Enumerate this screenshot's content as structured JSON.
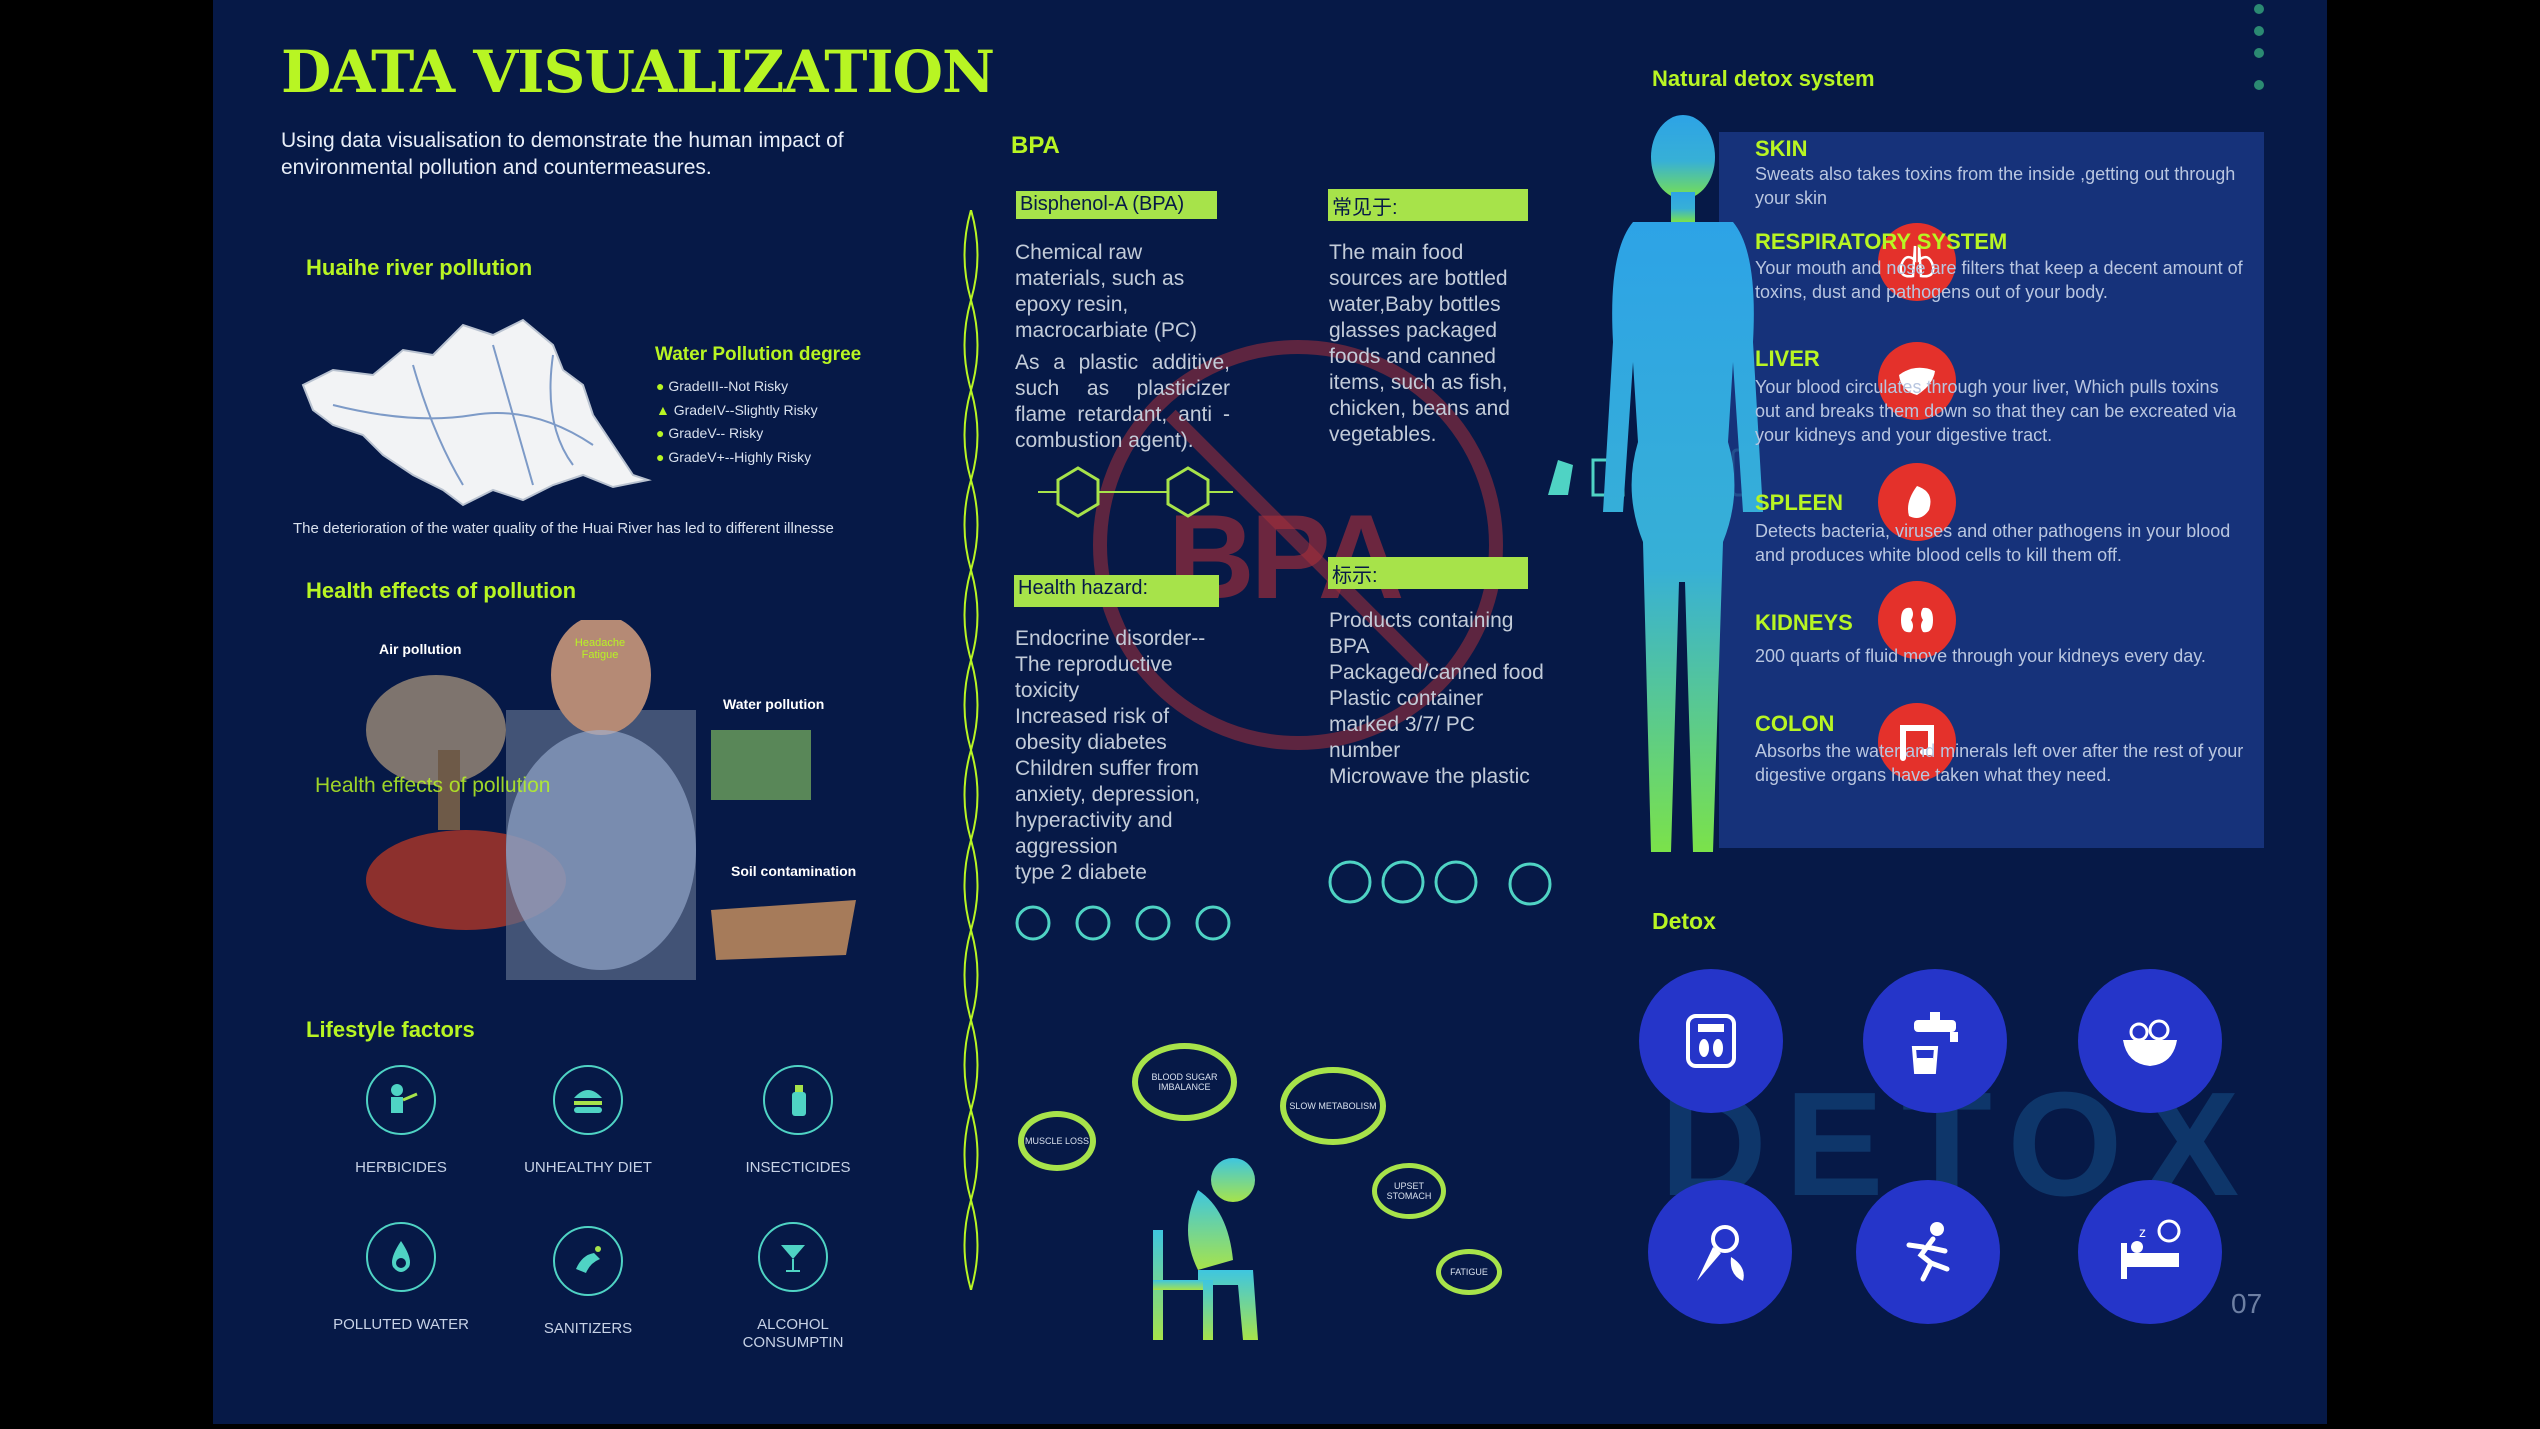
{
  "title": "DATA VISUALIZATION",
  "intro": "Using data visualisation to demonstrate the human impact of environmental pollution and countermeasures.",
  "huaihe": {
    "heading": "Huaihe river pollution",
    "legend_title": "Water Pollution degree",
    "legend_items": [
      "GradeIII--Not Risky",
      "GradeIV--Slightly Risky",
      "GradeV-- Risky",
      "GradeV+--Highly Risky"
    ],
    "caption": "The deterioration of the water quality of the Huai River has led to different illnesse"
  },
  "health": {
    "heading": "Health effects of pollution",
    "overlay": "Health effects of pollution",
    "labels": {
      "air": "Air pollution",
      "water": "Water pollution",
      "soil": "Soil contamination",
      "headache": "Headache Fatigue"
    }
  },
  "lifestyle": {
    "heading": "Lifestyle factors",
    "items": [
      {
        "label": "HERBICIDES",
        "icon": "herbicides-icon"
      },
      {
        "label": "UNHEALTHY DIET",
        "icon": "burger-icon"
      },
      {
        "label": "INSECTICIDES",
        "icon": "spray-bottle-icon"
      },
      {
        "label": "POLLUTED WATER",
        "icon": "water-drop-skull-icon"
      },
      {
        "label": "SANITIZERS",
        "icon": "hand-wash-icon"
      },
      {
        "label": "ALCOHOL CONSUMPTIN",
        "icon": "cocktail-icon"
      }
    ]
  },
  "bpa": {
    "heading": "BPA",
    "box1": "Bisphenol-A (BPA)",
    "text1a": "Chemical raw materials, such as epoxy resin, macrocarbiate (PC)",
    "text1b": "As a plastic additive, such as plasticizer flame retardant, anti - combustion agent).",
    "box2": "常见于:",
    "text2": "The main food sources are bottled water,Baby bottles glasses packaged foods and canned items, such as fish, chicken, beans and vegetables.",
    "box3": "Health hazard:",
    "text3": [
      "Endocrine disorder--The reproductive toxicity",
      "Increased risk of obesity diabetes",
      "Children suffer from anxiety, depression, hyperactivity and aggression",
      "type 2 diabete"
    ],
    "box4": "标示:",
    "text4": [
      "Products containing BPA",
      "Packaged/canned food",
      "Plastic container marked 3/7/ PC number",
      "Microwave the plastic"
    ],
    "stamp": "BPA"
  },
  "bubbles": [
    "BLOOD SUGAR IMBALANCE",
    "SLOW METABOLISM",
    "MUSCLE LOSS",
    "UPSET STOMACH",
    "FATIGUE"
  ],
  "detox_system": {
    "heading": "Natural detox system",
    "organs": [
      {
        "title": "SKIN",
        "text": "Sweats also takes toxins from the inside ,getting out through your skin"
      },
      {
        "title": "RESPIRATORY SYSTEM",
        "text": "Your mouth and nose are filters that keep a decent amount of toxins, dust and pathogens out of your body."
      },
      {
        "title": "LIVER",
        "text": "Your blood circulates through your liver, Which pulls toxins out and breaks them down so that they can be excreated via your kidneys and your digestive tract."
      },
      {
        "title": "SPLEEN",
        "text": "Detects bacteria, viruses and other pathogens in your blood and produces white blood cells to kill them off."
      },
      {
        "title": "KIDNEYS",
        "text": "200 quarts of fluid move through your kidneys every day."
      },
      {
        "title": "COLON",
        "text": "Absorbs the water and minerals left over after the rest of your digestive organs have taken what they need."
      }
    ]
  },
  "detox": {
    "heading": "Detox",
    "watermark": "DETOX",
    "icons": [
      "scale-icon",
      "faucet-icon",
      "salad-bowl-icon",
      "vegetables-icon",
      "running-icon",
      "sleep-icon"
    ]
  },
  "page_number": "07",
  "colors": {
    "background": "#061947",
    "accent": "#b8f523",
    "organ_red": "#e4312b",
    "detox_blue": "#2535c9"
  }
}
